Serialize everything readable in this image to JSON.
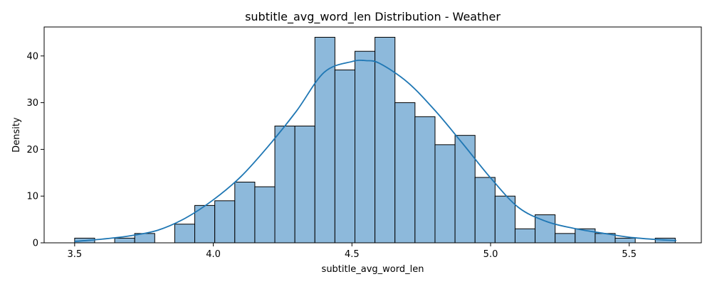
{
  "chart_data": {
    "type": "bar",
    "title": "subtitle_avg_word_len Distribution - Weather",
    "xlabel": "subtitle_avg_word_len",
    "ylabel": "Density",
    "xlim": [
      3.39,
      5.76
    ],
    "ylim": [
      0,
      46.2
    ],
    "xticks": [
      3.5,
      4.0,
      4.5,
      5.0,
      5.5
    ],
    "xtick_labels": [
      "3.5",
      "4.0",
      "4.5",
      "5.0",
      "5.5"
    ],
    "yticks": [
      0,
      10,
      20,
      30,
      40
    ],
    "ytick_labels": [
      "0",
      "10",
      "20",
      "30",
      "40"
    ],
    "grid": false,
    "bins": {
      "start": 3.5,
      "width": 0.0722,
      "values": [
        1,
        0,
        1,
        2,
        0,
        4,
        8,
        9,
        13,
        12,
        25,
        25,
        44,
        37,
        41,
        44,
        30,
        27,
        21,
        23,
        14,
        10,
        3,
        6,
        2,
        3,
        2,
        1,
        0,
        1
      ]
    },
    "kde": {
      "x": [
        3.5,
        3.6,
        3.7,
        3.8,
        3.9,
        4.0,
        4.1,
        4.2,
        4.3,
        4.4,
        4.5,
        4.55,
        4.6,
        4.7,
        4.8,
        4.9,
        5.0,
        5.1,
        5.2,
        5.3,
        5.4,
        5.5,
        5.6,
        5.67
      ],
      "y": [
        0.3,
        0.8,
        1.5,
        2.7,
        5.3,
        9.2,
        14.2,
        20.8,
        28.2,
        36.5,
        38.8,
        39.0,
        38.4,
        34.4,
        28.3,
        21.2,
        13.9,
        7.6,
        4.6,
        3.1,
        2.1,
        1.2,
        0.7,
        0.5
      ]
    },
    "colors": {
      "bar_fill": "#8db9db",
      "bar_edge": "#000000",
      "kde_line": "#1f77b4"
    }
  }
}
